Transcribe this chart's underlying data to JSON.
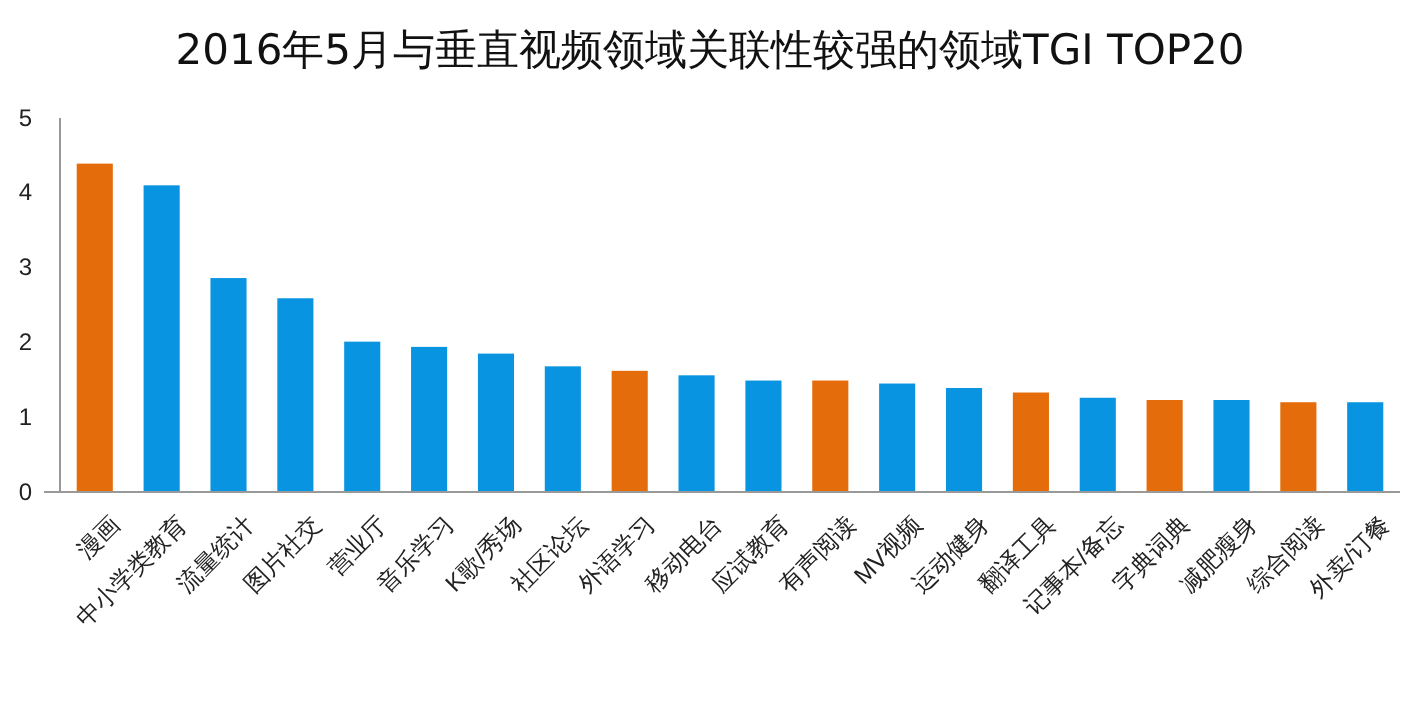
{
  "chart_data": {
    "type": "bar",
    "title": "2016年5月与垂直视频领域关联性较强的领域TGI TOP20",
    "categories": [
      "漫画",
      "中小学类教育",
      "流量统计",
      "图片社交",
      "营业厅",
      "音乐学习",
      "K歌/秀场",
      "社区论坛",
      "外语学习",
      "移动电台",
      "应试教育",
      "有声阅读",
      "MV视频",
      "运动健身",
      "翻译工具",
      "记事本/备忘",
      "字典词典",
      "减肥瘦身",
      "综合阅读",
      "外卖/订餐"
    ],
    "values": [
      4.39,
      4.1,
      2.86,
      2.59,
      2.01,
      1.94,
      1.85,
      1.68,
      1.62,
      1.56,
      1.49,
      1.49,
      1.45,
      1.39,
      1.33,
      1.26,
      1.23,
      1.23,
      1.2,
      1.2
    ],
    "colors": [
      "#e46c0a",
      "#0894e0",
      "#0894e0",
      "#0894e0",
      "#0894e0",
      "#0894e0",
      "#0894e0",
      "#0894e0",
      "#e46c0a",
      "#0894e0",
      "#0894e0",
      "#e46c0a",
      "#0894e0",
      "#0894e0",
      "#e46c0a",
      "#0894e0",
      "#e46c0a",
      "#0894e0",
      "#e46c0a",
      "#0894e0"
    ],
    "ylim": [
      0,
      5
    ],
    "yticks": [
      0,
      1,
      2,
      3,
      4,
      5
    ],
    "grid": false
  }
}
